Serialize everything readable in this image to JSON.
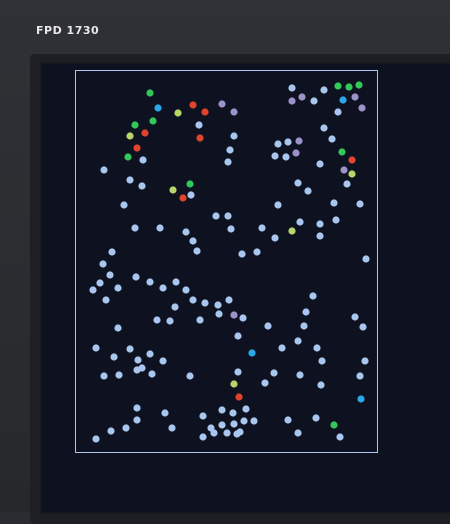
{
  "monitor": {
    "brand_label": "FPD 1730"
  },
  "colors": {
    "bezel": "#2b2d32",
    "screen": "#0e1220",
    "frame": "#a9c6ee",
    "dot_default": "#a9c6ee",
    "dot_red": "#e0442c",
    "dot_green": "#32c85a",
    "dot_lime": "#b6d66a",
    "dot_cyan": "#2aa8e8",
    "dot_purple": "#9a92c8"
  }
}
